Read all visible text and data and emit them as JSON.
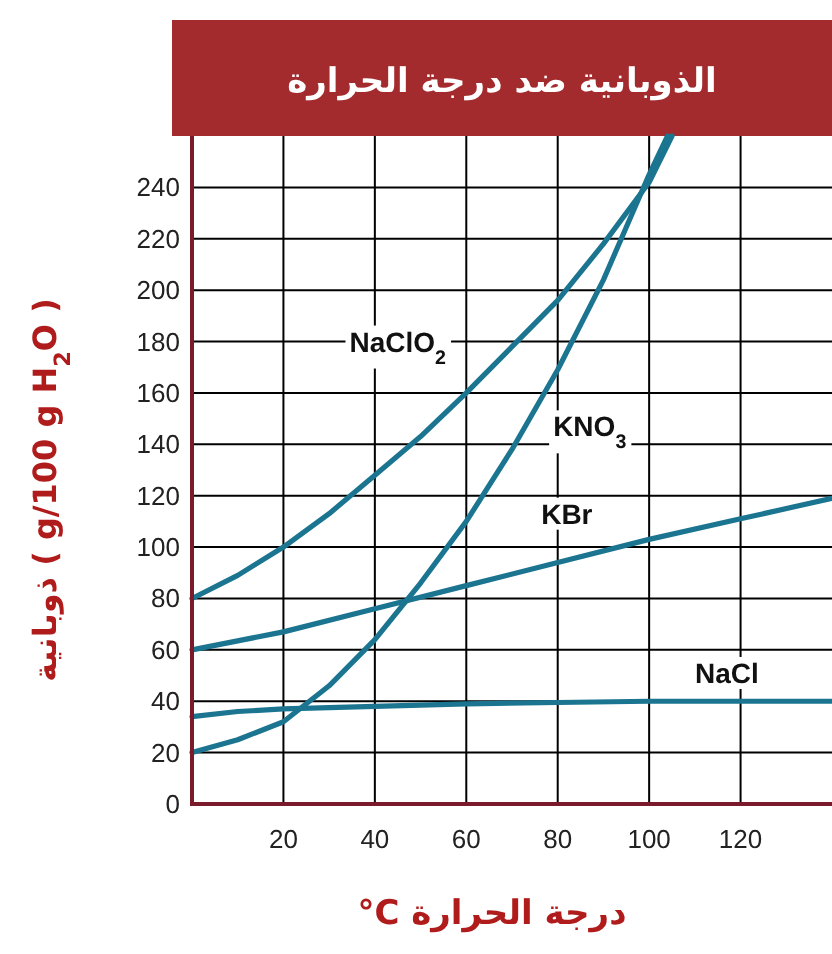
{
  "chart_data": {
    "type": "line",
    "title": "الذوبانية ضد درجة الحرارة",
    "xlabel": "°C درجة الحرارة",
    "ylabel": "ذوبانية ( g/100 g H$_{2}$O )",
    "xlim": [
      0,
      140
    ],
    "ylim": [
      0,
      260
    ],
    "xticks": [
      20,
      40,
      60,
      80,
      100,
      120
    ],
    "yticks": [
      0,
      20,
      40,
      60,
      80,
      100,
      120,
      140,
      160,
      180,
      200,
      220,
      240
    ],
    "grid": true,
    "marker": "none",
    "line_style": "solid",
    "series": [
      {
        "name": "NaClO$_{2}$",
        "color": "#1b7590",
        "x": [
          0,
          10,
          20,
          30,
          40,
          50,
          60,
          70,
          80,
          90,
          100,
          105
        ],
        "values": [
          80,
          89,
          100,
          113,
          128,
          143,
          160,
          178,
          196,
          218,
          242,
          260
        ]
      },
      {
        "name": "KNO$_{3}$",
        "color": "#1b7590",
        "x": [
          0,
          10,
          20,
          30,
          40,
          50,
          60,
          70,
          80,
          90,
          100,
          104
        ],
        "values": [
          20,
          25,
          32,
          46,
          64,
          86,
          110,
          138,
          169,
          204,
          245,
          260
        ]
      },
      {
        "name": "KBr",
        "color": "#1b7590",
        "x": [
          0,
          20,
          40,
          60,
          80,
          100,
          120,
          140
        ],
        "values": [
          60,
          67,
          76,
          85,
          94,
          103,
          111,
          119
        ]
      },
      {
        "name": "NaCl",
        "color": "#1b7590",
        "x": [
          0,
          10,
          20,
          40,
          60,
          80,
          100,
          140
        ],
        "values": [
          34,
          36,
          37,
          38,
          39,
          39.5,
          40,
          40
        ]
      }
    ]
  }
}
